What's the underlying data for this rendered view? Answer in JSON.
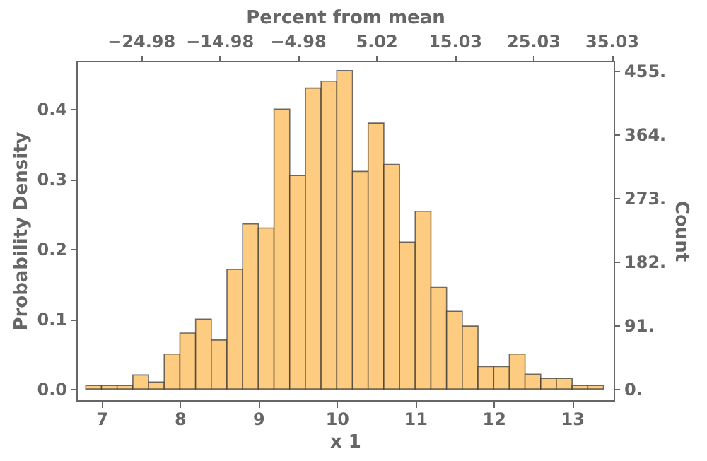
{
  "chart_data": {
    "type": "histogram",
    "xlabel": "x 1",
    "ylabel": "Probability Density",
    "y2label": "Count",
    "x2label": "Percent from mean",
    "bins": [
      6.8,
      7.0,
      7.2,
      7.4,
      7.6,
      7.8,
      8.0,
      8.2,
      8.4,
      8.6,
      8.8,
      9.0,
      9.2,
      9.4,
      9.6,
      9.8,
      10.0,
      10.2,
      10.4,
      10.6,
      10.8,
      11.0,
      11.2,
      11.4,
      11.6,
      11.8,
      12.0,
      12.2,
      12.4,
      12.6,
      12.8,
      13.0,
      13.2,
      13.4
    ],
    "values": [
      0.005,
      0.005,
      0.005,
      0.02,
      0.01,
      0.05,
      0.08,
      0.1,
      0.07,
      0.171,
      0.236,
      0.23,
      0.4,
      0.305,
      0.43,
      0.44,
      0.455,
      0.311,
      0.38,
      0.321,
      0.21,
      0.254,
      0.145,
      0.111,
      0.09,
      0.032,
      0.032,
      0.05,
      0.021,
      0.015,
      0.015,
      0.005,
      0.005
    ],
    "color": "#fecc80",
    "xlim": [
      6.68,
      13.53
    ],
    "xticks": [
      7,
      8,
      9,
      10,
      11,
      12,
      13
    ],
    "ylim": [
      -0.016,
      0.469
    ],
    "yticks": [
      {
        "value": 0,
        "label": "0.0"
      },
      0.1,
      0.2,
      0.3,
      0.4
    ],
    "x2lim": [
      -33.2,
      35.3
    ],
    "x2ticks": [
      -24.98,
      -14.98,
      -4.98,
      5.02,
      15.03,
      25.03,
      35.03
    ],
    "y2lim": [
      -16,
      469
    ],
    "y2ticks": [
      {
        "value": 0,
        "label": "0."
      },
      {
        "value": 91,
        "label": "91."
      },
      {
        "value": 182,
        "label": "182."
      },
      {
        "value": 273,
        "label": "273."
      },
      {
        "value": 364,
        "label": "364."
      },
      {
        "value": 455,
        "label": "455."
      }
    ]
  }
}
